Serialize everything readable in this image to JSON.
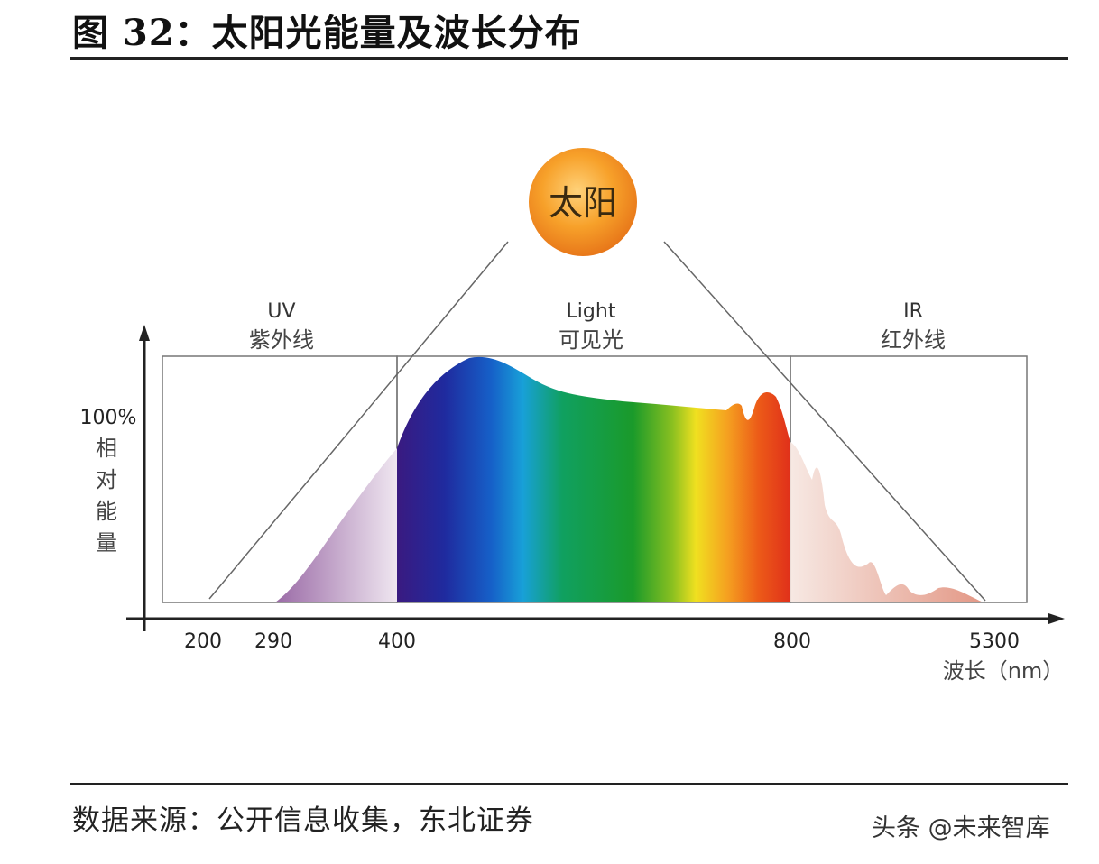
{
  "title": "图 32：太阳光能量及波长分布",
  "sun_label": "太阳",
  "regions": [
    {
      "name_en": "UV",
      "name_zh": "紫外线"
    },
    {
      "name_en": "Light",
      "name_zh": "可见光"
    },
    {
      "name_en": "IR",
      "name_zh": "红外线"
    }
  ],
  "y_axis": {
    "top_label": "100%",
    "label_chars": [
      "相",
      "对",
      "能",
      "量"
    ]
  },
  "x_axis": {
    "ticks": [
      "200",
      "290",
      "400",
      "800",
      "5300"
    ],
    "label": "波长（nm）"
  },
  "colors": {
    "sun": "#f39a1e",
    "uv": "#9b6fa8",
    "ir": "#e08c78"
  },
  "source": "数据来源：公开信息收集，东北证券",
  "watermark": "头条 @未来智库"
}
